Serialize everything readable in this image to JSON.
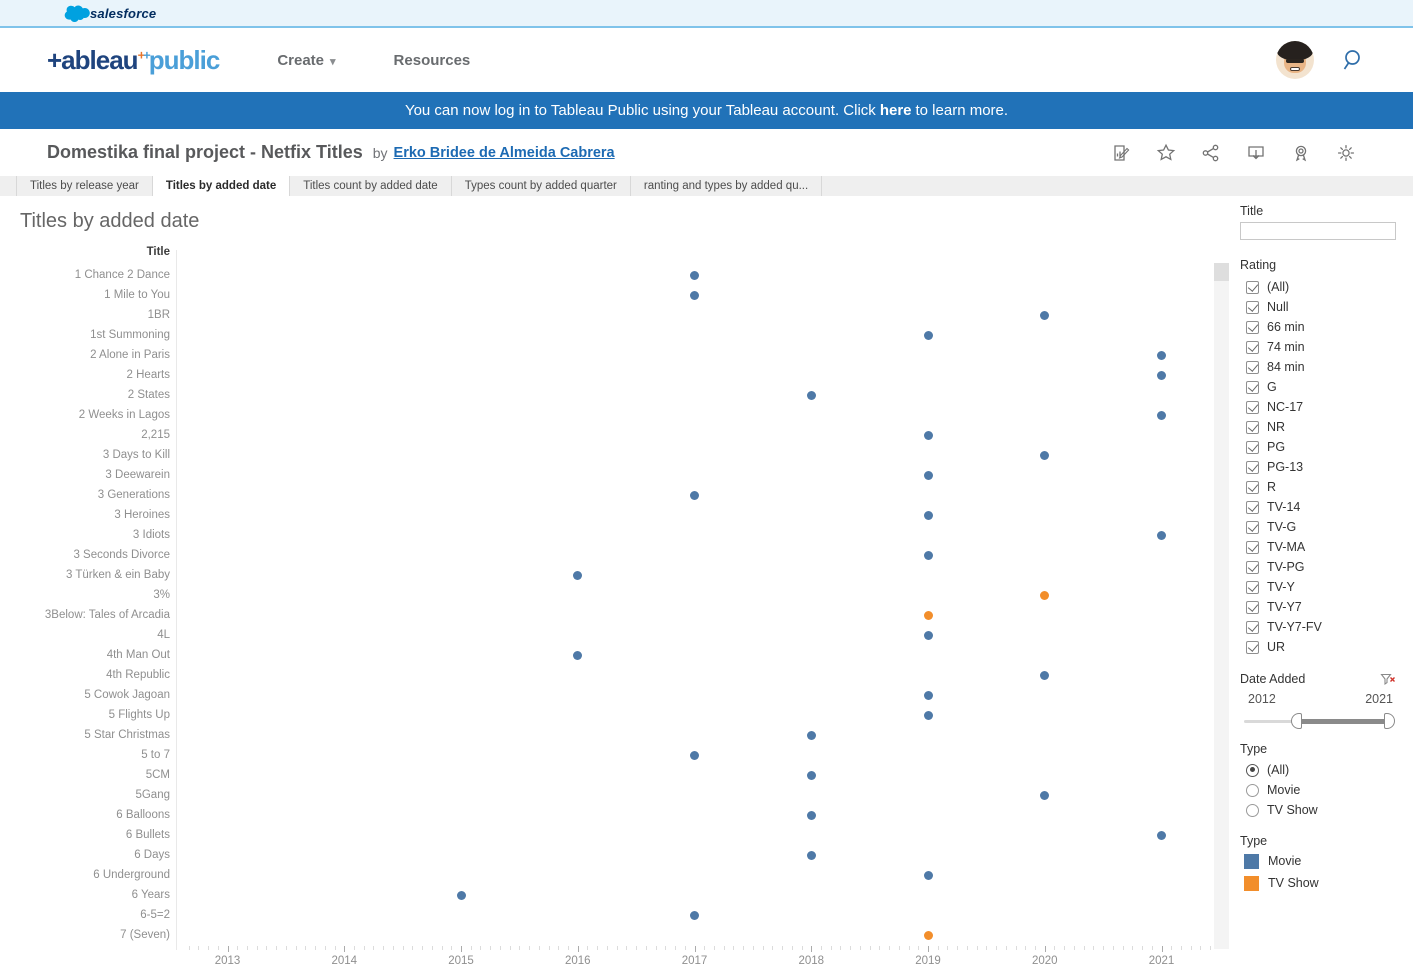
{
  "topbar": {
    "brand": "salesforce"
  },
  "header": {
    "logo_primary": "+ableau",
    "logo_secondary": "public",
    "nav": [
      {
        "label": "Create"
      },
      {
        "label": "Resources"
      }
    ]
  },
  "banner": {
    "text_before": "You can now log in to Tableau Public using your Tableau account. Click",
    "link": "here",
    "text_after": "to learn more."
  },
  "viz_header": {
    "title": "Domestika final project - Netfix Titles",
    "by": "by",
    "author": "Erko Bridee de Almeida Cabrera",
    "actions": [
      "edit",
      "favorite",
      "share",
      "download",
      "award",
      "settings"
    ]
  },
  "tabs": [
    {
      "label": "Titles by release year",
      "active": false
    },
    {
      "label": "Titles by added date",
      "active": true
    },
    {
      "label": "Titles count by added date",
      "active": false
    },
    {
      "label": "Types count by added quarter",
      "active": false
    },
    {
      "label": "ranting and types by added qu...",
      "active": false
    }
  ],
  "sheet": {
    "title": "Titles by added date",
    "row_header": "Title"
  },
  "chart_data": {
    "type": "scatter",
    "title": "Titles by added date",
    "xlabel": "",
    "ylabel": "Title",
    "x_ticks": [
      2013,
      2014,
      2015,
      2016,
      2017,
      2018,
      2019,
      2020,
      2021
    ],
    "x_range": [
      2012.65,
      2021.45
    ],
    "grid": false,
    "legend": {
      "title": "Type",
      "position": "right",
      "entries": [
        {
          "label": "Movie",
          "color": "#4e79a7"
        },
        {
          "label": "TV Show",
          "color": "#f28e2b"
        }
      ]
    },
    "points": [
      {
        "title": "1 Chance 2 Dance",
        "year": 2017,
        "type": "Movie"
      },
      {
        "title": "1 Mile to You",
        "year": 2017,
        "type": "Movie"
      },
      {
        "title": "1BR",
        "year": 2020,
        "type": "Movie"
      },
      {
        "title": "1st Summoning",
        "year": 2019,
        "type": "Movie"
      },
      {
        "title": "2 Alone in Paris",
        "year": 2021,
        "type": "Movie"
      },
      {
        "title": "2 Hearts",
        "year": 2021,
        "type": "Movie"
      },
      {
        "title": "2 States",
        "year": 2018,
        "type": "Movie"
      },
      {
        "title": "2 Weeks in Lagos",
        "year": 2021,
        "type": "Movie"
      },
      {
        "title": "2,215",
        "year": 2019,
        "type": "Movie"
      },
      {
        "title": "3 Days to Kill",
        "year": 2020,
        "type": "Movie"
      },
      {
        "title": "3 Deewarein",
        "year": 2019,
        "type": "Movie"
      },
      {
        "title": "3 Generations",
        "year": 2017,
        "type": "Movie"
      },
      {
        "title": "3 Heroines",
        "year": 2019,
        "type": "Movie"
      },
      {
        "title": "3 Idiots",
        "year": 2021,
        "type": "Movie"
      },
      {
        "title": "3 Seconds Divorce",
        "year": 2019,
        "type": "Movie"
      },
      {
        "title": "3 Türken & ein Baby",
        "year": 2016,
        "type": "Movie"
      },
      {
        "title": "3%",
        "year": 2020,
        "type": "TV Show"
      },
      {
        "title": "3Below: Tales of Arcadia",
        "year": 2019,
        "type": "TV Show"
      },
      {
        "title": "4L",
        "year": 2019,
        "type": "Movie"
      },
      {
        "title": "4th Man Out",
        "year": 2016,
        "type": "Movie"
      },
      {
        "title": "4th Republic",
        "year": 2020,
        "type": "Movie"
      },
      {
        "title": "5 Cowok Jagoan",
        "year": 2019,
        "type": "Movie"
      },
      {
        "title": "5 Flights Up",
        "year": 2019,
        "type": "Movie"
      },
      {
        "title": "5 Star Christmas",
        "year": 2018,
        "type": "Movie"
      },
      {
        "title": "5 to 7",
        "year": 2017,
        "type": "Movie"
      },
      {
        "title": "5CM",
        "year": 2018,
        "type": "Movie"
      },
      {
        "title": "5Gang",
        "year": 2020,
        "type": "Movie"
      },
      {
        "title": "6 Balloons",
        "year": 2018,
        "type": "Movie"
      },
      {
        "title": "6 Bullets",
        "year": 2021,
        "type": "Movie"
      },
      {
        "title": "6 Days",
        "year": 2018,
        "type": "Movie"
      },
      {
        "title": "6 Underground",
        "year": 2019,
        "type": "Movie"
      },
      {
        "title": "6 Years",
        "year": 2015,
        "type": "Movie"
      },
      {
        "title": "6-5=2",
        "year": 2017,
        "type": "Movie"
      },
      {
        "title": "7 (Seven)",
        "year": 2019,
        "type": "TV Show"
      }
    ]
  },
  "filters": {
    "title_filter": {
      "label": "Title",
      "value": ""
    },
    "rating": {
      "label": "Rating",
      "options": [
        "(All)",
        "Null",
        "66 min",
        "74 min",
        "84 min",
        "G",
        "NC-17",
        "NR",
        "PG",
        "PG-13",
        "R",
        "TV-14",
        "TV-G",
        "TV-MA",
        "TV-PG",
        "TV-Y",
        "TV-Y7",
        "TV-Y7-FV",
        "UR"
      ],
      "all_checked": true
    },
    "date_added": {
      "label": "Date Added",
      "min": "2012",
      "max": "2021"
    },
    "type_radio": {
      "label": "Type",
      "options": [
        {
          "label": "(All)",
          "selected": true
        },
        {
          "label": "Movie",
          "selected": false
        },
        {
          "label": "TV Show",
          "selected": false
        }
      ]
    },
    "type_legend": {
      "label": "Type",
      "entries": [
        {
          "label": "Movie",
          "color": "#4e79a7"
        },
        {
          "label": "TV Show",
          "color": "#f28e2b"
        }
      ]
    }
  },
  "colors": {
    "movie": "#4e79a7",
    "tv_show": "#f28e2b",
    "banner": "#2172b8",
    "salesforce_blue": "#00a1e0"
  }
}
